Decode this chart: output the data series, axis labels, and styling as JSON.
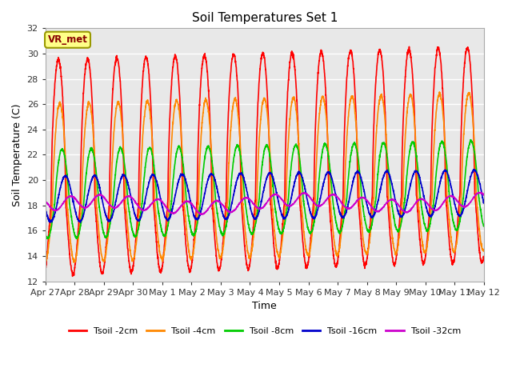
{
  "title": "Soil Temperatures Set 1",
  "xlabel": "Time",
  "ylabel": "Soil Temperature (C)",
  "ylim": [
    12,
    32
  ],
  "yticks": [
    12,
    14,
    16,
    18,
    20,
    22,
    24,
    26,
    28,
    30,
    32
  ],
  "plot_bg_color": "#e8e8e8",
  "grid_color": "white",
  "annotation_text": "VR_met",
  "annotation_bg": "#ffff88",
  "annotation_border": "#999900",
  "annotation_text_color": "#880000",
  "x_tick_labels": [
    "Apr 27",
    "Apr 28",
    "Apr 29",
    "Apr 30",
    "May 1",
    "May 2",
    "May 3",
    "May 4",
    "May 5",
    "May 6",
    "May 7",
    "May 8",
    "May 9",
    "May 10",
    "May 11",
    "May 12"
  ],
  "legend_entries": [
    "Tsoil -2cm",
    "Tsoil -4cm",
    "Tsoil -8cm",
    "Tsoil -16cm",
    "Tsoil -32cm"
  ],
  "legend_colors": [
    "#ff0000",
    "#ff8800",
    "#00cc00",
    "#0000cc",
    "#cc00cc"
  ],
  "n_days": 15,
  "n_points": 3000
}
